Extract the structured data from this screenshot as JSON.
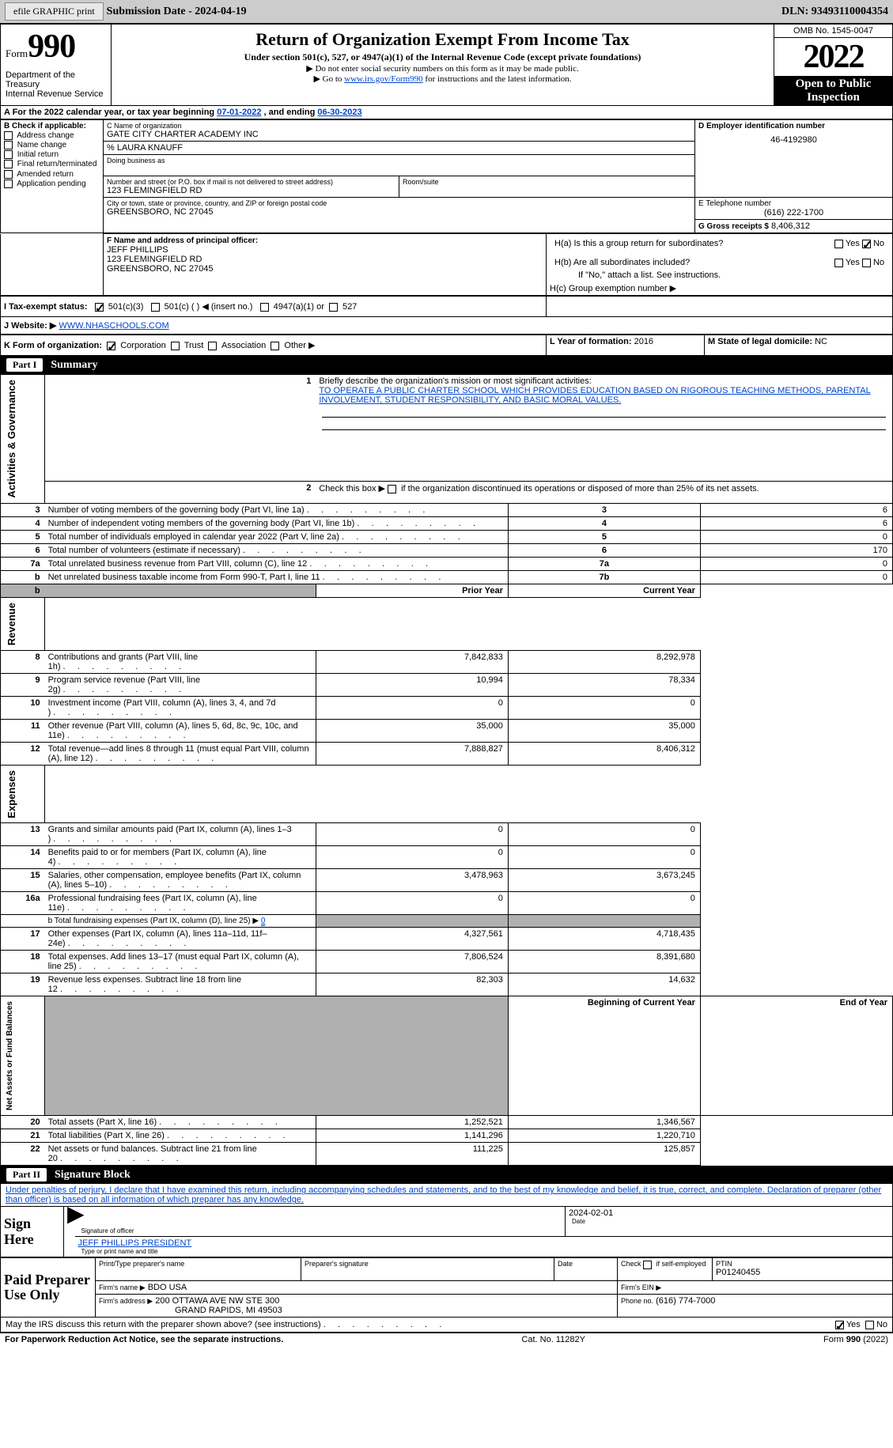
{
  "topbar": {
    "btn_efile": "efile GRAPHIC print",
    "sub_label": "Submission Date - 2024-04-19",
    "dln": "DLN: 93493110004354"
  },
  "header": {
    "form_word": "Form",
    "form_num": "990",
    "dept": "Department of the Treasury\nInternal Revenue Service",
    "title": "Return of Organization Exempt From Income Tax",
    "subtitle": "Under section 501(c), 527, or 4947(a)(1) of the Internal Revenue Code (except private foundations)",
    "instr1": "▶ Do not enter social security numbers on this form as it may be made public.",
    "instr2_pre": "▶ Go to ",
    "instr2_link": "www.irs.gov/Form990",
    "instr2_post": " for instructions and the latest information.",
    "omb": "OMB No. 1545-0047",
    "year": "2022",
    "open_pub": "Open to Public Inspection"
  },
  "row_a": {
    "text_pre": "A For the 2022 calendar year, or tax year beginning ",
    "beg": "07-01-2022",
    "mid": "   , and ending ",
    "end": "06-30-2023"
  },
  "box_b": {
    "label": "B Check if applicable:",
    "opts": [
      "Address change",
      "Name change",
      "Initial return",
      "Final return/terminated",
      "Amended return",
      "Application pending"
    ]
  },
  "box_c": {
    "name_lbl": "C Name of organization",
    "name": "GATE CITY CHARTER ACADEMY INC",
    "care_of": "% LAURA KNAUFF",
    "dba_lbl": "Doing business as",
    "addr_lbl": "Number and street (or P.O. box if mail is not delivered to street address)",
    "room_lbl": "Room/suite",
    "addr": "123 FLEMINGFIELD RD",
    "city_lbl": "City or town, state or province, country, and ZIP or foreign postal code",
    "city": "GREENSBORO, NC  27045"
  },
  "box_d": {
    "label": "D Employer identification number",
    "val": "46-4192980"
  },
  "box_e": {
    "label": "E Telephone number",
    "val": "(616) 222-1700"
  },
  "box_g": {
    "label": "G Gross receipts $",
    "val": "8,406,312"
  },
  "box_f": {
    "label": "F Name and address of principal officer:",
    "name": "JEFF PHILLIPS",
    "addr1": "123 FLEMINGFIELD RD",
    "addr2": "GREENSBORO, NC  27045"
  },
  "box_h": {
    "ha": "H(a)  Is this a group return for subordinates?",
    "hb": "H(b)  Are all subordinates included?",
    "hb_note": "If \"No,\" attach a list. See instructions.",
    "hc": "H(c)  Group exemption number ▶",
    "yes": "Yes",
    "no": "No"
  },
  "row_i": {
    "label": "I   Tax-exempt status:",
    "opts": [
      "501(c)(3)",
      "501(c) (  ) ◀ (insert no.)",
      "4947(a)(1) or",
      "527"
    ]
  },
  "row_j": {
    "label": "J   Website: ▶",
    "val": " WWW.NHASCHOOLS.COM"
  },
  "row_k": {
    "label": "K Form of organization:",
    "opts": [
      "Corporation",
      "Trust",
      "Association",
      "Other ▶"
    ]
  },
  "row_l": {
    "label": "L Year of formation:",
    "val": "2016"
  },
  "row_m": {
    "label": "M State of legal domicile:",
    "val": "NC"
  },
  "part1_label": "Part I",
  "part1_title": "Summary",
  "side_labels": {
    "ag": "Activities & Governance",
    "rev": "Revenue",
    "exp": "Expenses",
    "net": "Net Assets or Fund Balances"
  },
  "summary": {
    "l1_label": "Briefly describe the organization's mission or most significant activities:",
    "l1_text": "TO OPERATE A PUBLIC CHARTER SCHOOL WHICH PROVIDES EDUCATION BASED ON RIGOROUS TEACHING METHODS, PARENTAL INVOLVEMENT, STUDENT RESPONSIBILITY, AND BASIC MORAL VALUES.",
    "l2": "Check this box ▶       if the organization discontinued its operations or disposed of more than 25% of its net assets.",
    "rows_top": [
      {
        "n": "3",
        "d": "Number of voting members of the governing body (Part VI, line 1a)",
        "box": "3",
        "v": "6"
      },
      {
        "n": "4",
        "d": "Number of independent voting members of the governing body (Part VI, line 1b)",
        "box": "4",
        "v": "6"
      },
      {
        "n": "5",
        "d": "Total number of individuals employed in calendar year 2022 (Part V, line 2a)",
        "box": "5",
        "v": "0"
      },
      {
        "n": "6",
        "d": "Total number of volunteers (estimate if necessary)",
        "box": "6",
        "v": "170"
      },
      {
        "n": "7a",
        "d": "Total unrelated business revenue from Part VIII, column (C), line 12",
        "box": "7a",
        "v": "0"
      },
      {
        "n": "b",
        "d": "Net unrelated business taxable income from Form 990-T, Part I, line 11",
        "box": "7b",
        "v": "0"
      }
    ],
    "col_prior": "Prior Year",
    "col_curr": "Current Year",
    "rev_rows": [
      {
        "n": "8",
        "d": "Contributions and grants (Part VIII, line 1h)",
        "p": "7,842,833",
        "c": "8,292,978"
      },
      {
        "n": "9",
        "d": "Program service revenue (Part VIII, line 2g)",
        "p": "10,994",
        "c": "78,334"
      },
      {
        "n": "10",
        "d": "Investment income (Part VIII, column (A), lines 3, 4, and 7d )",
        "p": "0",
        "c": "0"
      },
      {
        "n": "11",
        "d": "Other revenue (Part VIII, column (A), lines 5, 6d, 8c, 9c, 10c, and 11e)",
        "p": "35,000",
        "c": "35,000"
      },
      {
        "n": "12",
        "d": "Total revenue—add lines 8 through 11 (must equal Part VIII, column (A), line 12)",
        "p": "7,888,827",
        "c": "8,406,312"
      }
    ],
    "exp_rows": [
      {
        "n": "13",
        "d": "Grants and similar amounts paid (Part IX, column (A), lines 1–3 )",
        "p": "0",
        "c": "0"
      },
      {
        "n": "14",
        "d": "Benefits paid to or for members (Part IX, column (A), line 4)",
        "p": "0",
        "c": "0"
      },
      {
        "n": "15",
        "d": "Salaries, other compensation, employee benefits (Part IX, column (A), lines 5–10)",
        "p": "3,478,963",
        "c": "3,673,245"
      },
      {
        "n": "16a",
        "d": "Professional fundraising fees (Part IX, column (A), line 11e)",
        "p": "0",
        "c": "0"
      }
    ],
    "l16b_pre": "b  Total fundraising expenses (Part IX, column (D), line 25) ▶",
    "l16b_val": "0",
    "exp_rows2": [
      {
        "n": "17",
        "d": "Other expenses (Part IX, column (A), lines 11a–11d, 11f–24e)",
        "p": "4,327,561",
        "c": "4,718,435"
      },
      {
        "n": "18",
        "d": "Total expenses. Add lines 13–17 (must equal Part IX, column (A), line 25)",
        "p": "7,806,524",
        "c": "8,391,680"
      },
      {
        "n": "19",
        "d": "Revenue less expenses. Subtract line 18 from line 12",
        "p": "82,303",
        "c": "14,632"
      }
    ],
    "col_beg": "Beginning of Current Year",
    "col_end": "End of Year",
    "net_rows": [
      {
        "n": "20",
        "d": "Total assets (Part X, line 16)",
        "p": "1,252,521",
        "c": "1,346,567"
      },
      {
        "n": "21",
        "d": "Total liabilities (Part X, line 26)",
        "p": "1,141,296",
        "c": "1,220,710"
      },
      {
        "n": "22",
        "d": "Net assets or fund balances. Subtract line 21 from line 20",
        "p": "111,225",
        "c": "125,857"
      }
    ]
  },
  "part2_label": "Part II",
  "part2_title": "Signature Block",
  "penalty": "Under penalties of perjury, I declare that I have examined this return, including accompanying schedules and statements, and to the best of my knowledge and belief, it is true, correct, and complete. Declaration of preparer (other than officer) is based on all information of which preparer has any knowledge.",
  "sign": {
    "here": "Sign Here",
    "sig_lbl": "Signature of officer",
    "date_lbl": "Date",
    "date_val": "2024-02-01",
    "name_val": "JEFF PHILLIPS  PRESIDENT",
    "name_lbl": "Type or print name and title"
  },
  "paid": {
    "label": "Paid Preparer Use Only",
    "print_lbl": "Print/Type preparer's name",
    "sig_lbl": "Preparer's signature",
    "date_lbl": "Date",
    "check_lbl": "Check        if self-employed",
    "ptin_lbl": "PTIN",
    "ptin_val": "P01240455",
    "firm_name_lbl": "Firm's name    ▶",
    "firm_name": "BDO USA",
    "firm_ein_lbl": "Firm's EIN ▶",
    "firm_addr_lbl": "Firm's address ▶",
    "firm_addr1": "200 OTTAWA AVE NW STE 300",
    "firm_addr2": "GRAND RAPIDS, MI  49503",
    "phone_lbl": "Phone no.",
    "phone_val": "(616) 774-7000"
  },
  "discuss": {
    "text": "May the IRS discuss this return with the preparer shown above? (see instructions)",
    "yes": "Yes",
    "no": "No"
  },
  "footer": {
    "left": "For Paperwork Reduction Act Notice, see the separate instructions.",
    "mid": "Cat. No. 11282Y",
    "right_pre": "Form ",
    "right_num": "990",
    "right_post": " (2022)"
  }
}
